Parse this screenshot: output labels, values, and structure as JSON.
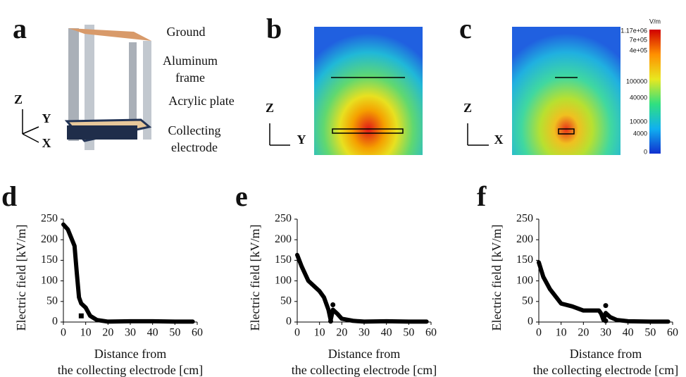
{
  "panels": [
    {
      "letter": "a",
      "callouts": [
        [
          "Ground"
        ],
        [
          "Aluminum",
          "frame"
        ],
        [
          "Acrylic plate"
        ],
        [
          "Collecting",
          "electrode"
        ]
      ],
      "axes": [
        "Z",
        "Y",
        "X"
      ]
    },
    {
      "letter": "b",
      "axes": [
        "Z",
        "Y"
      ]
    },
    {
      "letter": "c",
      "axes": [
        "Z",
        "X"
      ]
    }
  ],
  "colorbar": {
    "unit": "V/m",
    "labels": [
      "1.17e+06",
      "7e+05",
      "4e+05",
      "100000",
      "40000",
      "10000",
      "4000",
      "0"
    ]
  },
  "chart_data": [
    {
      "type": "line",
      "panel_label": "d",
      "xlabel": [
        "Distance from",
        "the collecting electrode [cm]"
      ],
      "ylabel": "Electric field [kV/m]",
      "xlim": [
        0,
        60
      ],
      "ylim": [
        0,
        250
      ],
      "xticks": [
        0,
        10,
        20,
        30,
        40,
        50,
        60
      ],
      "yticks": [
        0,
        50,
        100,
        150,
        200,
        250
      ],
      "series": [
        {
          "color": "#000000",
          "x": [
            0,
            2,
            5,
            6,
            7,
            8,
            10,
            12,
            15,
            20,
            30,
            40,
            50,
            58
          ],
          "values": [
            237,
            225,
            185,
            120,
            60,
            45,
            35,
            15,
            5,
            1,
            2,
            2,
            1,
            1
          ]
        },
        {
          "color": "#000000",
          "marker": "square",
          "x": [
            8
          ],
          "values": [
            15
          ]
        }
      ]
    },
    {
      "type": "line",
      "panel_label": "e",
      "xlabel": [
        "Distance from",
        "the collecting electrode [cm]"
      ],
      "ylabel": "Electric field [kV/m]",
      "xlim": [
        0,
        60
      ],
      "ylim": [
        0,
        250
      ],
      "xticks": [
        0,
        10,
        20,
        30,
        40,
        50,
        60
      ],
      "yticks": [
        0,
        50,
        100,
        150,
        200,
        250
      ],
      "series": [
        {
          "color": "#000000",
          "x": [
            0,
            2,
            5,
            10,
            12,
            14,
            15,
            16,
            18,
            20,
            25,
            30,
            40,
            50,
            58
          ],
          "values": [
            163,
            135,
            100,
            75,
            60,
            30,
            5,
            30,
            20,
            8,
            3,
            1,
            2,
            1,
            1
          ]
        },
        {
          "color": "#000000",
          "marker": "circle",
          "x": [
            16,
            15
          ],
          "values": [
            42,
            2
          ]
        }
      ]
    },
    {
      "type": "line",
      "panel_label": "f",
      "xlabel": [
        "Distance from",
        "the collecting electrode [cm]"
      ],
      "ylabel": "Electric field [kV/m]",
      "xlim": [
        0,
        60
      ],
      "ylim": [
        0,
        250
      ],
      "xticks": [
        0,
        10,
        20,
        30,
        40,
        50,
        60
      ],
      "yticks": [
        0,
        50,
        100,
        150,
        200,
        250
      ],
      "series": [
        {
          "color": "#000000",
          "x": [
            0,
            2,
            5,
            10,
            15,
            20,
            25,
            27,
            28,
            29,
            30,
            32,
            35,
            40,
            50,
            58
          ],
          "values": [
            145,
            110,
            80,
            45,
            38,
            28,
            28,
            28,
            20,
            5,
            22,
            12,
            5,
            2,
            1,
            1
          ]
        },
        {
          "color": "#000000",
          "marker": "circle",
          "x": [
            30,
            30
          ],
          "values": [
            40,
            3
          ]
        }
      ]
    }
  ]
}
